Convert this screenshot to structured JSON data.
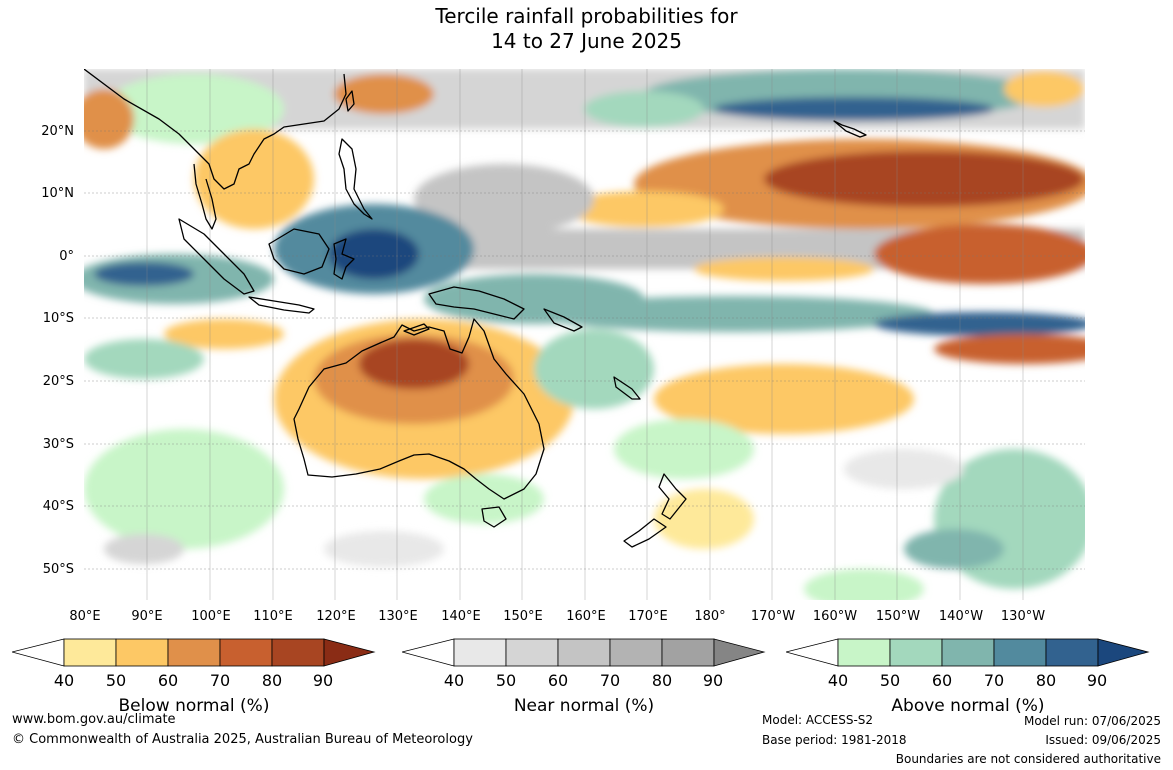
{
  "title_line1": "Tercile rainfall probabilities for",
  "title_line2": "14 to 27 June 2025",
  "lat_labels": [
    "20°N",
    "10°N",
    "0°",
    "10°S",
    "20°S",
    "30°S",
    "40°S",
    "50°S"
  ],
  "lon_labels": [
    "80°E",
    "90°E",
    "100°E",
    "110°E",
    "120°E",
    "130°E",
    "140°E",
    "150°E",
    "160°E",
    "170°E",
    "180°",
    "170°W",
    "160°W",
    "150°W",
    "140°W",
    "130°W"
  ],
  "colorbars": [
    {
      "label": "Below normal (%)",
      "ticks": [
        "40",
        "50",
        "60",
        "70",
        "80",
        "90"
      ],
      "colors": [
        "#ffffff",
        "#fee99a",
        "#fdc865",
        "#e0904a",
        "#c8602f",
        "#a84522",
        "#8a2c15"
      ]
    },
    {
      "label": "Near normal (%)",
      "ticks": [
        "40",
        "50",
        "60",
        "70",
        "80",
        "90"
      ],
      "colors": [
        "#ffffff",
        "#e8e8e8",
        "#d5d5d5",
        "#c4c4c4",
        "#b3b3b3",
        "#a2a2a2",
        "#858585"
      ]
    },
    {
      "label": "Above normal (%)",
      "ticks": [
        "40",
        "50",
        "60",
        "70",
        "80",
        "90"
      ],
      "colors": [
        "#ffffff",
        "#c8f5c8",
        "#a3d8bd",
        "#80b5ad",
        "#528a9e",
        "#32628f",
        "#1b477d"
      ]
    }
  ],
  "footer": {
    "website": "www.bom.gov.au/climate",
    "copyright": "© Commonwealth of Australia 2025, Australian Bureau of Meteorology",
    "model": "Model: ACCESS-S2",
    "base_period": "Base period: 1981-2018",
    "model_run": "Model run: 07/06/2025",
    "issued": "Issued: 09/06/2025",
    "disclaimer": "Boundaries are not considered authoritative"
  }
}
